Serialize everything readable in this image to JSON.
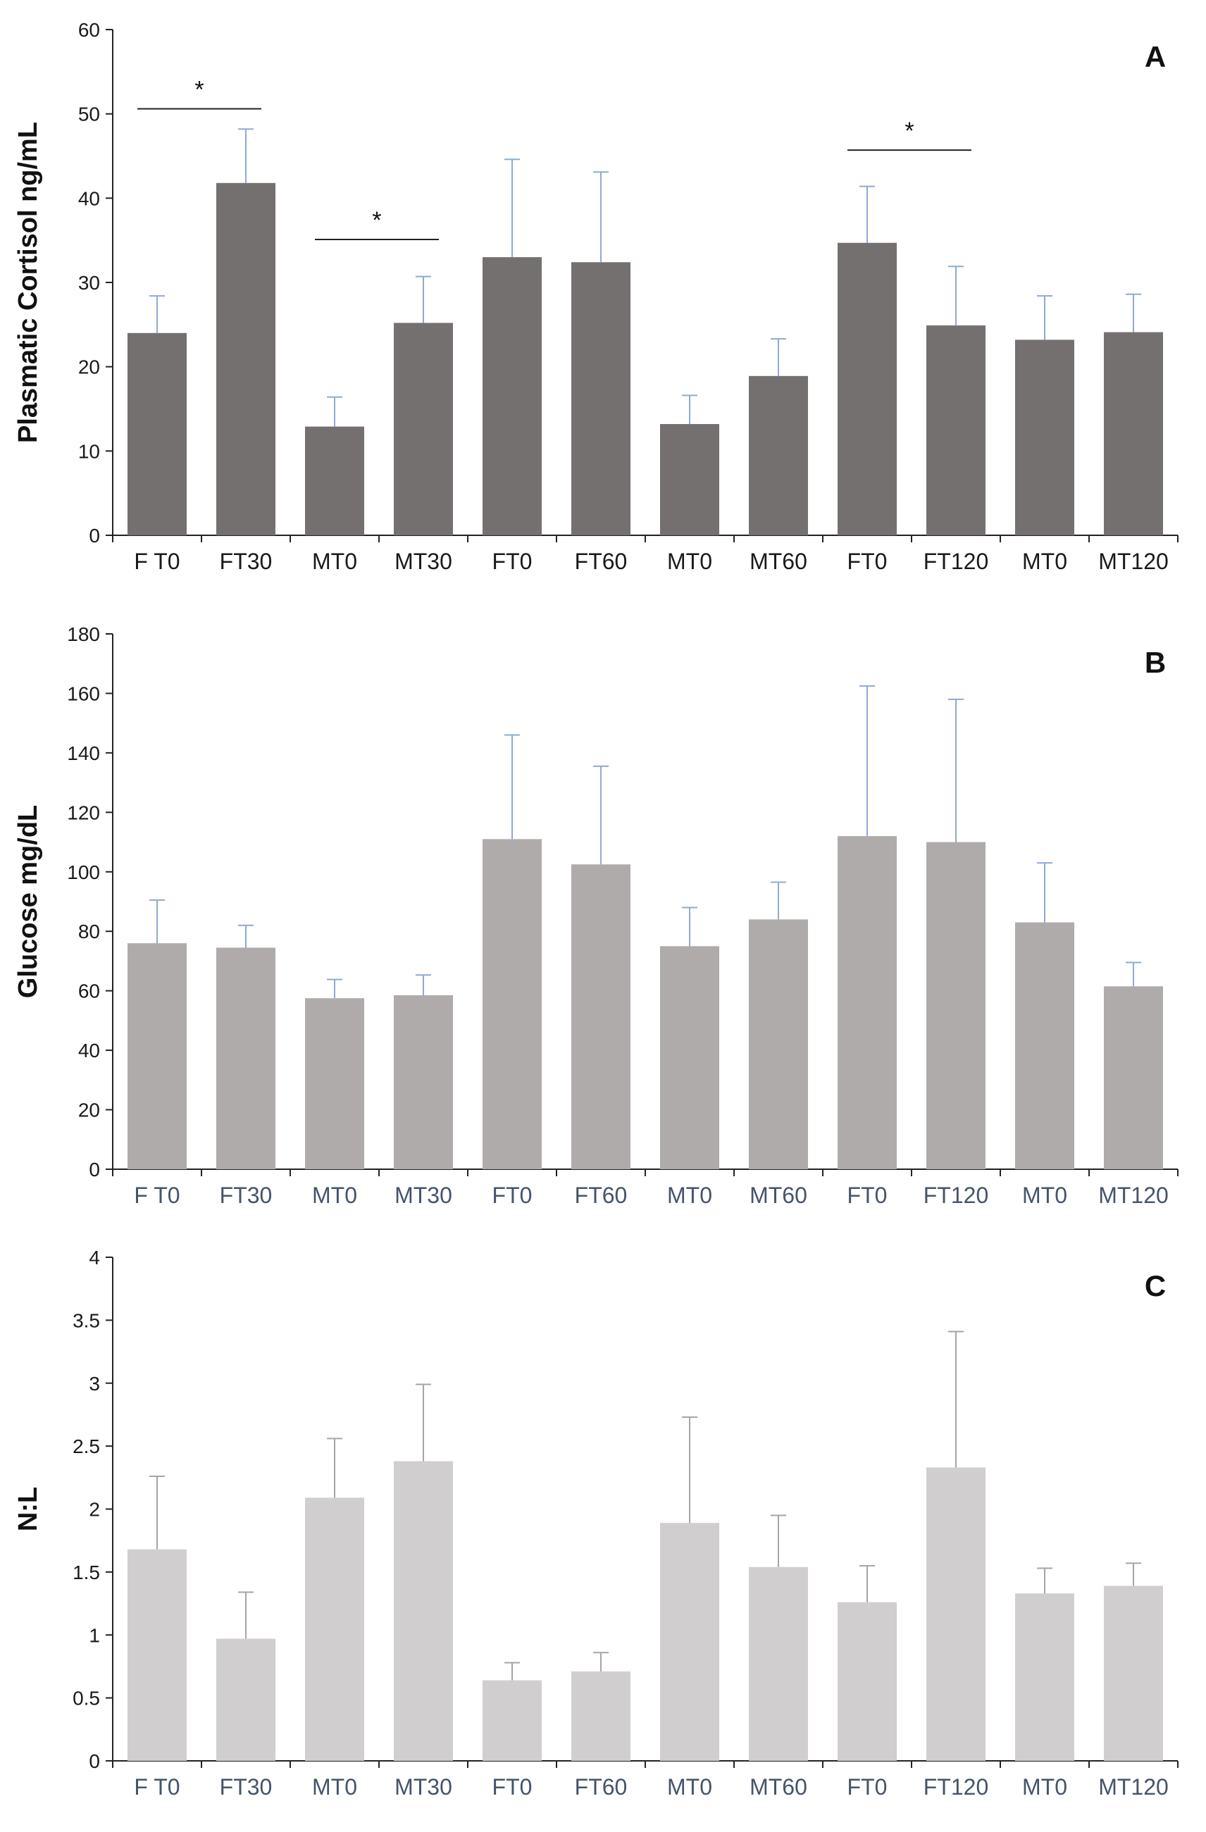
{
  "chart_data": [
    {
      "type": "bar",
      "panel_label": "A",
      "ylabel": "Plasmatic Cortisol ng/mL",
      "xlabel": "",
      "ylim": [
        0,
        60
      ],
      "yticks": [
        0,
        10,
        20,
        30,
        40,
        50,
        60
      ],
      "categories": [
        "F T0",
        "FT30",
        "MT0",
        "MT30",
        "FT0",
        "FT60",
        "MT0",
        "MT60",
        "FT0",
        "FT120",
        "MT0",
        "MT120"
      ],
      "values": [
        24.0,
        41.8,
        12.9,
        25.2,
        33.0,
        32.4,
        13.2,
        18.9,
        34.7,
        24.9,
        23.2,
        24.1
      ],
      "error": [
        4.4,
        6.4,
        3.5,
        5.5,
        11.6,
        10.7,
        3.4,
        4.4,
        6.7,
        7.0,
        5.2,
        4.5
      ],
      "bar_color": "#747070",
      "error_color": "#8eaad2",
      "tick_label_color": "#1a1a1a",
      "significance": [
        {
          "from": 0,
          "to": 1,
          "level": 50.6,
          "label": "*"
        },
        {
          "from": 2,
          "to": 3,
          "level": 35.1,
          "label": "*"
        },
        {
          "from": 8,
          "to": 9,
          "level": 45.7,
          "label": "*"
        }
      ]
    },
    {
      "type": "bar",
      "panel_label": "B",
      "ylabel": "Glucose mg/dL",
      "xlabel": "",
      "ylim": [
        0,
        180
      ],
      "yticks": [
        0,
        20,
        40,
        60,
        80,
        100,
        120,
        140,
        160,
        180
      ],
      "categories": [
        "F T0",
        "FT30",
        "MT0",
        "MT30",
        "FT0",
        "FT60",
        "MT0",
        "MT60",
        "FT0",
        "FT120",
        "MT0",
        "MT120"
      ],
      "values": [
        76,
        74.5,
        57.5,
        58.5,
        111,
        102.5,
        75,
        84,
        112,
        110,
        83,
        61.5
      ],
      "error": [
        14.5,
        7.5,
        6.3,
        6.8,
        35,
        33,
        13,
        12.5,
        50.5,
        48,
        20,
        8
      ],
      "bar_color": "#afabab",
      "error_color": "#8eaad2",
      "tick_label_color": "#44546a",
      "significance": []
    },
    {
      "type": "bar",
      "panel_label": "C",
      "ylabel": "N:L",
      "xlabel": "",
      "ylim": [
        0,
        4
      ],
      "yticks": [
        "0",
        "0.5",
        "1",
        "1.5",
        "2",
        "2.5",
        "3",
        "3.5",
        "4"
      ],
      "categories": [
        "F T0",
        "FT30",
        "MT0",
        "MT30",
        "FT0",
        "FT60",
        "MT0",
        "MT60",
        "FT0",
        "FT120",
        "MT0",
        "MT120"
      ],
      "values": [
        1.68,
        0.97,
        2.09,
        2.38,
        0.64,
        0.71,
        1.89,
        1.54,
        1.26,
        2.33,
        1.33,
        1.39
      ],
      "error": [
        0.58,
        0.37,
        0.47,
        0.61,
        0.14,
        0.15,
        0.84,
        0.41,
        0.29,
        1.08,
        0.2,
        0.18
      ],
      "bar_color": "#d0cece",
      "error_color": "#a5a5a5",
      "tick_label_color": "#44546a",
      "significance": []
    }
  ]
}
